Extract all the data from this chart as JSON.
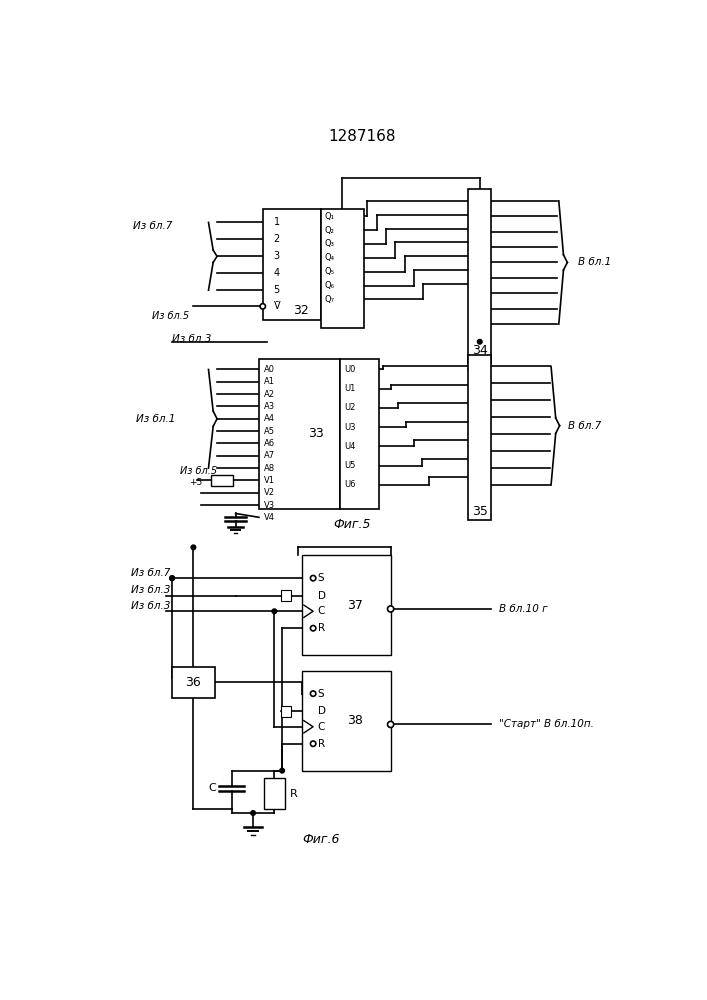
{
  "title": "1287168",
  "fig5_label": "Фиг.5",
  "fig6_label": "Фиг.6",
  "bg_color": "#ffffff",
  "line_color": "#000000",
  "lw": 1.2
}
